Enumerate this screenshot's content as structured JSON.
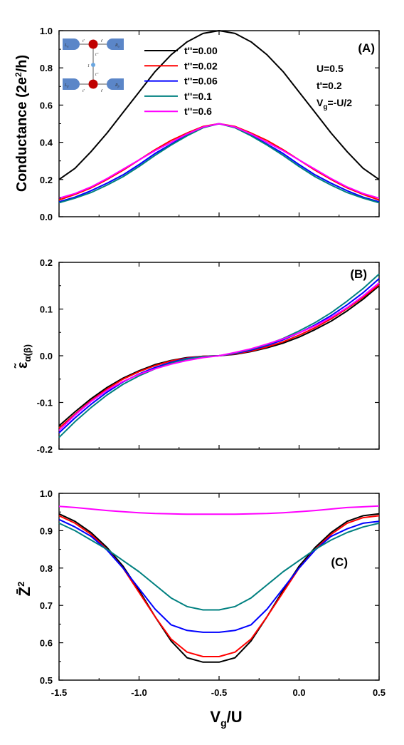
{
  "chart_data": [
    {
      "type": "line",
      "panel_label": "(A)",
      "ylabel": "Conductance (2e²/h)",
      "xlim": [
        -1.5,
        0.5
      ],
      "ylim": [
        0.0,
        1.0
      ],
      "yticks": [
        "0.0",
        "0.2",
        "0.4",
        "0.6",
        "0.8",
        "1.0"
      ],
      "annotations": [
        "U=0.5",
        "t'=0.2",
        "V_g=-U/2"
      ],
      "legend": "top-center",
      "x": [
        -1.5,
        -1.4,
        -1.3,
        -1.2,
        -1.1,
        -1.0,
        -0.9,
        -0.8,
        -0.7,
        -0.6,
        -0.5,
        -0.4,
        -0.3,
        -0.2,
        -0.1,
        0.0,
        0.1,
        0.2,
        0.3,
        0.4,
        0.5
      ],
      "series": [
        {
          "name": "t''=0.00",
          "color": "#000000",
          "values": [
            0.2,
            0.26,
            0.35,
            0.45,
            0.56,
            0.67,
            0.78,
            0.87,
            0.94,
            0.985,
            1.0,
            0.985,
            0.94,
            0.87,
            0.78,
            0.67,
            0.56,
            0.45,
            0.35,
            0.26,
            0.2
          ]
        },
        {
          "name": "t''=0.02",
          "color": "#ff0000",
          "values": [
            0.09,
            0.12,
            0.155,
            0.2,
            0.25,
            0.305,
            0.36,
            0.41,
            0.45,
            0.485,
            0.5,
            0.485,
            0.45,
            0.41,
            0.36,
            0.305,
            0.25,
            0.2,
            0.155,
            0.12,
            0.09
          ]
        },
        {
          "name": "t''=0.06",
          "color": "#0000ff",
          "values": [
            0.08,
            0.105,
            0.14,
            0.18,
            0.225,
            0.28,
            0.34,
            0.39,
            0.44,
            0.48,
            0.5,
            0.48,
            0.44,
            0.39,
            0.34,
            0.28,
            0.225,
            0.18,
            0.14,
            0.105,
            0.08
          ]
        },
        {
          "name": "t''=0.1",
          "color": "#008080",
          "values": [
            0.075,
            0.1,
            0.13,
            0.17,
            0.215,
            0.27,
            0.33,
            0.385,
            0.435,
            0.478,
            0.5,
            0.478,
            0.435,
            0.385,
            0.33,
            0.27,
            0.215,
            0.17,
            0.13,
            0.1,
            0.075
          ]
        },
        {
          "name": "t''=0.6",
          "color": "#ff00ff",
          "values": [
            0.1,
            0.125,
            0.16,
            0.205,
            0.255,
            0.305,
            0.355,
            0.4,
            0.445,
            0.482,
            0.5,
            0.482,
            0.445,
            0.4,
            0.355,
            0.305,
            0.255,
            0.205,
            0.16,
            0.125,
            0.1
          ]
        }
      ]
    },
    {
      "type": "line",
      "panel_label": "(B)",
      "ylabel": "ε̃α(β)",
      "xlim": [
        -1.5,
        0.5
      ],
      "ylim": [
        -0.2,
        0.2
      ],
      "yticks": [
        "-0.2",
        "-0.1",
        "0.0",
        "0.1",
        "0.2"
      ],
      "x": [
        -1.5,
        -1.4,
        -1.3,
        -1.2,
        -1.1,
        -1.0,
        -0.9,
        -0.8,
        -0.7,
        -0.6,
        -0.5,
        -0.4,
        -0.3,
        -0.2,
        -0.1,
        0.0,
        0.1,
        0.2,
        0.3,
        0.4,
        0.5
      ],
      "series": [
        {
          "name": "t''=0.00",
          "color": "#000000",
          "values": [
            -0.15,
            -0.12,
            -0.092,
            -0.068,
            -0.048,
            -0.032,
            -0.019,
            -0.01,
            -0.004,
            -0.001,
            0.0,
            0.003,
            0.009,
            0.017,
            0.027,
            0.04,
            0.056,
            0.074,
            0.096,
            0.121,
            0.15
          ]
        },
        {
          "name": "t''=0.02",
          "color": "#ff0000",
          "values": [
            -0.155,
            -0.125,
            -0.096,
            -0.071,
            -0.05,
            -0.034,
            -0.021,
            -0.011,
            -0.005,
            -0.001,
            0.0,
            0.004,
            0.01,
            0.019,
            0.03,
            0.044,
            0.06,
            0.079,
            0.101,
            0.125,
            0.152
          ]
        },
        {
          "name": "t''=0.06",
          "color": "#0000ff",
          "values": [
            -0.165,
            -0.133,
            -0.104,
            -0.078,
            -0.056,
            -0.039,
            -0.025,
            -0.014,
            -0.006,
            -0.002,
            0.0,
            0.005,
            0.012,
            0.022,
            0.034,
            0.049,
            0.066,
            0.086,
            0.109,
            0.135,
            0.165
          ]
        },
        {
          "name": "t''=0.1",
          "color": "#008080",
          "values": [
            -0.175,
            -0.141,
            -0.111,
            -0.084,
            -0.061,
            -0.043,
            -0.028,
            -0.016,
            -0.007,
            -0.002,
            0.0,
            0.006,
            0.014,
            0.024,
            0.037,
            0.053,
            0.071,
            0.092,
            0.117,
            0.144,
            0.175
          ]
        },
        {
          "name": "t''=0.6",
          "color": "#ff00ff",
          "values": [
            -0.16,
            -0.127,
            -0.098,
            -0.074,
            -0.055,
            -0.04,
            -0.028,
            -0.018,
            -0.01,
            -0.004,
            0.0,
            0.007,
            0.015,
            0.025,
            0.036,
            0.049,
            0.064,
            0.082,
            0.103,
            0.128,
            0.156
          ]
        }
      ]
    },
    {
      "type": "line",
      "panel_label": "(C)",
      "ylabel": "Z̄²",
      "xlabel": "Vg/U",
      "xlim": [
        -1.5,
        0.5
      ],
      "ylim": [
        0.5,
        1.0
      ],
      "xticks": [
        "-1.5",
        "-1.0",
        "-0.5",
        "0.0",
        "0.5"
      ],
      "yticks": [
        "0.5",
        "0.6",
        "0.7",
        "0.8",
        "0.9",
        "1.0"
      ],
      "x": [
        -1.5,
        -1.4,
        -1.3,
        -1.2,
        -1.1,
        -1.0,
        -0.9,
        -0.8,
        -0.7,
        -0.6,
        -0.5,
        -0.4,
        -0.3,
        -0.2,
        -0.1,
        0.0,
        0.1,
        0.2,
        0.3,
        0.4,
        0.5
      ],
      "series": [
        {
          "name": "t''=0.00",
          "color": "#000000",
          "values": [
            0.945,
            0.925,
            0.895,
            0.855,
            0.805,
            0.74,
            0.67,
            0.605,
            0.56,
            0.548,
            0.548,
            0.56,
            0.605,
            0.67,
            0.74,
            0.805,
            0.855,
            0.895,
            0.925,
            0.94,
            0.945
          ]
        },
        {
          "name": "t''=0.02",
          "color": "#ff0000",
          "values": [
            0.94,
            0.92,
            0.89,
            0.85,
            0.8,
            0.735,
            0.67,
            0.61,
            0.575,
            0.563,
            0.563,
            0.575,
            0.61,
            0.67,
            0.735,
            0.8,
            0.85,
            0.89,
            0.92,
            0.935,
            0.94
          ]
        },
        {
          "name": "t''=0.06",
          "color": "#0000ff",
          "values": [
            0.93,
            0.91,
            0.885,
            0.848,
            0.8,
            0.745,
            0.69,
            0.648,
            0.633,
            0.628,
            0.628,
            0.633,
            0.648,
            0.69,
            0.745,
            0.8,
            0.848,
            0.885,
            0.905,
            0.92,
            0.925
          ]
        },
        {
          "name": "t''=0.1",
          "color": "#008080",
          "values": [
            0.92,
            0.9,
            0.875,
            0.85,
            0.82,
            0.79,
            0.755,
            0.72,
            0.697,
            0.688,
            0.688,
            0.697,
            0.72,
            0.755,
            0.79,
            0.82,
            0.85,
            0.875,
            0.895,
            0.91,
            0.92
          ]
        },
        {
          "name": "t''=0.6",
          "color": "#ff00ff",
          "values": [
            0.965,
            0.962,
            0.958,
            0.954,
            0.951,
            0.948,
            0.946,
            0.945,
            0.944,
            0.944,
            0.944,
            0.944,
            0.945,
            0.946,
            0.948,
            0.951,
            0.954,
            0.958,
            0.962,
            0.964,
            0.966
          ]
        }
      ]
    }
  ],
  "legend_labels": [
    "t''=0.00",
    "t''=0.02",
    "t''=0.06",
    "t''=0.1",
    "t''=0.6"
  ],
  "params": {
    "u": "U=0.5",
    "tp": "t'=0.2",
    "vg_main": "V",
    "vg_sub": "g",
    "vg_rest": "=-U/2"
  },
  "ylabels": {
    "a": "Conductance (2e",
    "a_sup": "2",
    "a_tail": "/h)",
    "b_main": "ε̃",
    "b_sub": "α(β)",
    "c_main": "Z̄",
    "c_sup": "2"
  },
  "xlabel": {
    "main": "V",
    "sub": "g",
    "tail": "/U"
  },
  "inset": {
    "la": "L",
    "la_sub": "α",
    "ra": "R",
    "ra_sub": "α",
    "lb": "L",
    "lb_sub": "β",
    "rb": "R",
    "rb_sub": "β",
    "tp": "t'",
    "tpp": "t''",
    "one": "1"
  }
}
